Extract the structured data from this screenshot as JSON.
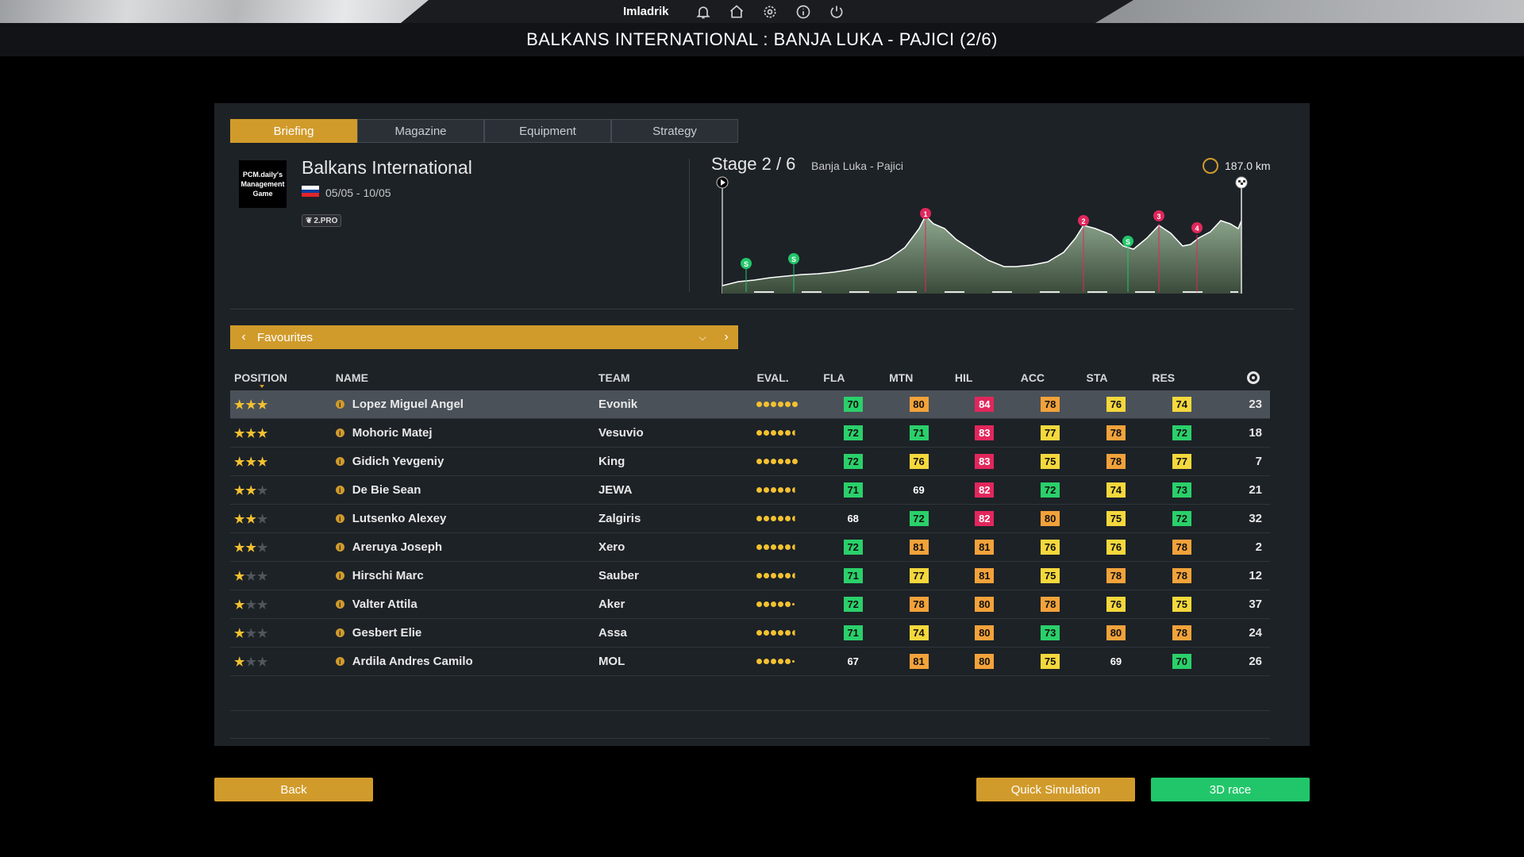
{
  "topbar": {
    "username": "Imladrik"
  },
  "title": "BALKANS INTERNATIONAL : BANJA LUKA - PAJICI (2/6)",
  "tabs": [
    {
      "label": "Briefing",
      "active": true
    },
    {
      "label": "Magazine",
      "active": false
    },
    {
      "label": "Equipment",
      "active": false
    },
    {
      "label": "Strategy",
      "active": false
    }
  ],
  "race": {
    "logo_text": "PCM.daily's Management Game",
    "name": "Balkans International",
    "dates": "05/05 - 10/05",
    "category": "2.PRO"
  },
  "stage": {
    "label": "Stage 2 / 6",
    "route": "Banja Luka - Pajici",
    "distance": "187.0 km",
    "climbs": [
      "1",
      "2",
      "3",
      "4"
    ],
    "sprints": [
      "S",
      "S",
      "S"
    ]
  },
  "filter": {
    "label": "Favourites"
  },
  "columns": [
    "POSITION",
    "NAME",
    "TEAM",
    "EVAL.",
    "FLA",
    "MTN",
    "HIL",
    "ACC",
    "STA",
    "RES"
  ],
  "riders": [
    {
      "stars": 3,
      "name": "Lopez Miguel Angel",
      "team": "Evonik",
      "eval": 6,
      "fla": {
        "v": "70",
        "c": "g"
      },
      "mtn": {
        "v": "80",
        "c": "o"
      },
      "hil": {
        "v": "84",
        "c": "r"
      },
      "acc": {
        "v": "78",
        "c": "o"
      },
      "sta": {
        "v": "76",
        "c": "y"
      },
      "res": {
        "v": "74",
        "c": "y"
      },
      "num": "23"
    },
    {
      "stars": 3,
      "name": "Mohoric Matej",
      "team": "Vesuvio",
      "eval": 5.5,
      "fla": {
        "v": "72",
        "c": "g"
      },
      "mtn": {
        "v": "71",
        "c": "g"
      },
      "hil": {
        "v": "83",
        "c": "r"
      },
      "acc": {
        "v": "77",
        "c": "y"
      },
      "sta": {
        "v": "78",
        "c": "o"
      },
      "res": {
        "v": "72",
        "c": "g"
      },
      "num": "18"
    },
    {
      "stars": 3,
      "name": "Gidich Yevgeniy",
      "team": "King",
      "eval": 6,
      "fla": {
        "v": "72",
        "c": "g"
      },
      "mtn": {
        "v": "76",
        "c": "y"
      },
      "hil": {
        "v": "83",
        "c": "r"
      },
      "acc": {
        "v": "75",
        "c": "y"
      },
      "sta": {
        "v": "78",
        "c": "o"
      },
      "res": {
        "v": "77",
        "c": "y"
      },
      "num": "7"
    },
    {
      "stars": 2,
      "name": "De Bie Sean",
      "team": "JEWA",
      "eval": 5.5,
      "fla": {
        "v": "71",
        "c": "g"
      },
      "mtn": {
        "v": "69",
        "c": "n"
      },
      "hil": {
        "v": "82",
        "c": "r"
      },
      "acc": {
        "v": "72",
        "c": "g"
      },
      "sta": {
        "v": "74",
        "c": "y"
      },
      "res": {
        "v": "73",
        "c": "g"
      },
      "num": "21"
    },
    {
      "stars": 2,
      "name": "Lutsenko Alexey",
      "team": "Zalgiris",
      "eval": 5.5,
      "fla": {
        "v": "68",
        "c": "n"
      },
      "mtn": {
        "v": "72",
        "c": "g"
      },
      "hil": {
        "v": "82",
        "c": "r"
      },
      "acc": {
        "v": "80",
        "c": "o"
      },
      "sta": {
        "v": "75",
        "c": "y"
      },
      "res": {
        "v": "72",
        "c": "g"
      },
      "num": "32"
    },
    {
      "stars": 2,
      "name": "Areruya Joseph",
      "team": "Xero",
      "eval": 5.5,
      "fla": {
        "v": "72",
        "c": "g"
      },
      "mtn": {
        "v": "81",
        "c": "o"
      },
      "hil": {
        "v": "81",
        "c": "o"
      },
      "acc": {
        "v": "76",
        "c": "y"
      },
      "sta": {
        "v": "76",
        "c": "y"
      },
      "res": {
        "v": "78",
        "c": "o"
      },
      "num": "2"
    },
    {
      "stars": 1,
      "name": "Hirschi Marc",
      "team": "Sauber",
      "eval": 5.5,
      "fla": {
        "v": "71",
        "c": "g"
      },
      "mtn": {
        "v": "77",
        "c": "y"
      },
      "hil": {
        "v": "81",
        "c": "o"
      },
      "acc": {
        "v": "75",
        "c": "y"
      },
      "sta": {
        "v": "78",
        "c": "o"
      },
      "res": {
        "v": "78",
        "c": "o"
      },
      "num": "12"
    },
    {
      "stars": 1,
      "name": "Valter Attila",
      "team": "Aker",
      "eval": 5,
      "fla": {
        "v": "72",
        "c": "g"
      },
      "mtn": {
        "v": "78",
        "c": "o"
      },
      "hil": {
        "v": "80",
        "c": "o"
      },
      "acc": {
        "v": "78",
        "c": "o"
      },
      "sta": {
        "v": "76",
        "c": "y"
      },
      "res": {
        "v": "75",
        "c": "y"
      },
      "num": "37"
    },
    {
      "stars": 1,
      "name": "Gesbert Elie",
      "team": "Assa",
      "eval": 5.5,
      "fla": {
        "v": "71",
        "c": "g"
      },
      "mtn": {
        "v": "74",
        "c": "y"
      },
      "hil": {
        "v": "80",
        "c": "o"
      },
      "acc": {
        "v": "73",
        "c": "g"
      },
      "sta": {
        "v": "80",
        "c": "o"
      },
      "res": {
        "v": "78",
        "c": "o"
      },
      "num": "24"
    },
    {
      "stars": 1,
      "name": "Ardila Andres Camilo",
      "team": "MOL",
      "eval": 5,
      "fla": {
        "v": "67",
        "c": "n"
      },
      "mtn": {
        "v": "81",
        "c": "o"
      },
      "hil": {
        "v": "80",
        "c": "o"
      },
      "acc": {
        "v": "75",
        "c": "y"
      },
      "sta": {
        "v": "69",
        "c": "n"
      },
      "res": {
        "v": "70",
        "c": "g"
      },
      "num": "26"
    }
  ],
  "buttons": {
    "back": "Back",
    "quick": "Quick Simulation",
    "race3d": "3D race"
  },
  "colors": {
    "accent": "#d19b2b",
    "green": "#22c66a",
    "red": "#e1275c"
  }
}
